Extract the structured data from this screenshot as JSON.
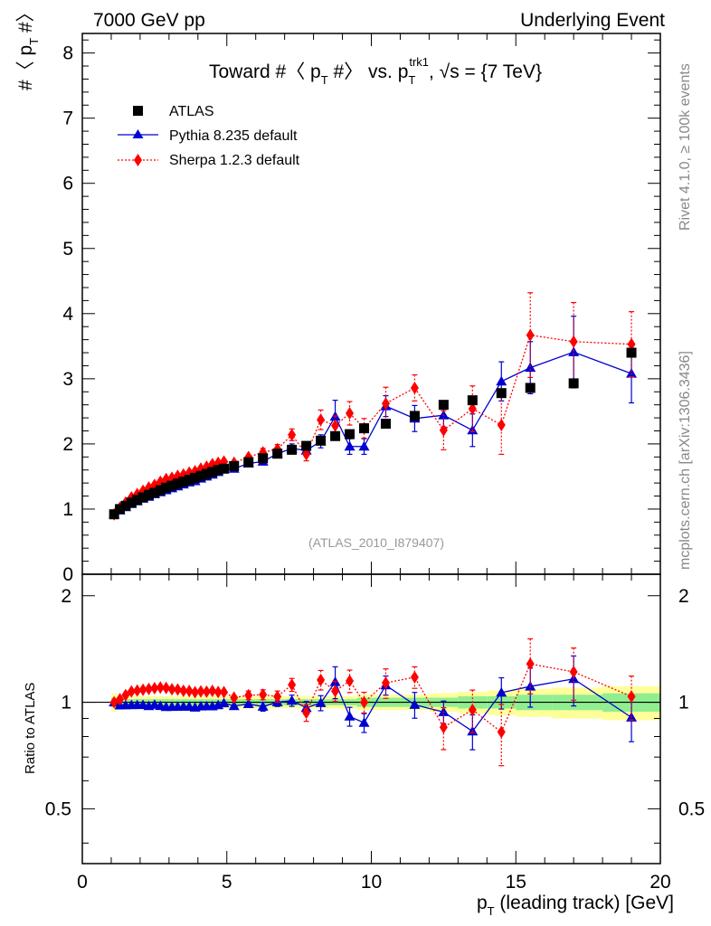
{
  "header": {
    "left": "7000 GeV pp",
    "right": "Underlying Event"
  },
  "side_labels": {
    "rivet": "Rivet 4.1.0, ≥ 100k events",
    "mcplots": "mcplots.cern.ch [arXiv:1306.3436]"
  },
  "colors": {
    "atlas": "#000000",
    "pythia": "#0000d0",
    "sherpa": "#ff0000",
    "band_inner": "#90ee90",
    "band_outer": "#ffff99"
  },
  "chart_data": {
    "type": "scatter",
    "title_parts": {
      "main": "Toward #〈 p",
      "sub1": "T",
      "mid": " #〉 vs. p",
      "sup": "trk1",
      "sub2": "T",
      "tail": ", √s = {7 TeV}"
    },
    "watermark": "(ATLAS_2010_I879407)",
    "ylabel_main": {
      "a": "#〈 p",
      "sub": "T",
      "b": " #〉"
    },
    "ylabel_ratio": "Ratio to ATLAS",
    "xlabel": {
      "p": "p",
      "sub": "T",
      "rest": " (leading track) [GeV]"
    },
    "xlim": [
      0,
      20
    ],
    "ylim_main": [
      0,
      8.3
    ],
    "ylim_ratio": [
      0.35,
      2.3
    ],
    "xticks": [
      0,
      5,
      10,
      15,
      20
    ],
    "xtick_labels": [
      "0",
      "5",
      "10",
      "15",
      "20"
    ],
    "yticks_main": [
      0,
      1,
      2,
      3,
      4,
      5,
      6,
      7,
      8
    ],
    "ytick_labels_main": [
      "0",
      "1",
      "2",
      "3",
      "4",
      "5",
      "6",
      "7",
      "8"
    ],
    "yticks_ratio": [
      0.5,
      1,
      2
    ],
    "ytick_labels_ratio": [
      "0.5",
      "1",
      "2"
    ],
    "legend": [
      "ATLAS",
      "Pythia 8.235 default",
      "Sherpa 1.2.3 default"
    ],
    "x": [
      1.1,
      1.3,
      1.5,
      1.7,
      1.9,
      2.1,
      2.3,
      2.5,
      2.7,
      2.9,
      3.1,
      3.3,
      3.5,
      3.7,
      3.9,
      4.1,
      4.3,
      4.5,
      4.7,
      4.9,
      5.25,
      5.75,
      6.25,
      6.75,
      7.25,
      7.75,
      8.25,
      8.75,
      9.25,
      9.75,
      10.5,
      11.5,
      12.5,
      13.5,
      14.5,
      15.5,
      17.0,
      19.0
    ],
    "series": [
      {
        "name": "ATLAS",
        "values": [
          0.92,
          1.0,
          1.05,
          1.1,
          1.14,
          1.18,
          1.22,
          1.25,
          1.29,
          1.33,
          1.36,
          1.39,
          1.42,
          1.45,
          1.48,
          1.51,
          1.54,
          1.57,
          1.6,
          1.62,
          1.66,
          1.72,
          1.78,
          1.85,
          1.91,
          1.97,
          2.05,
          2.12,
          2.15,
          2.24,
          2.31,
          2.43,
          2.6,
          2.67,
          2.78,
          2.86,
          2.93,
          3.4
        ],
        "band_inner_halfwidth": [
          0.03,
          0.02,
          0.02,
          0.02,
          0.02,
          0.02,
          0.02,
          0.02,
          0.02,
          0.02,
          0.02,
          0.02,
          0.02,
          0.02,
          0.02,
          0.02,
          0.02,
          0.02,
          0.02,
          0.02,
          0.02,
          0.02,
          0.02,
          0.02,
          0.02,
          0.02,
          0.02,
          0.02,
          0.02,
          0.03,
          0.03,
          0.03,
          0.03,
          0.04,
          0.04,
          0.05,
          0.05,
          0.06
        ],
        "band_outer_halfwidth": [
          0.06,
          0.04,
          0.04,
          0.04,
          0.04,
          0.04,
          0.04,
          0.04,
          0.04,
          0.04,
          0.04,
          0.04,
          0.04,
          0.04,
          0.04,
          0.04,
          0.04,
          0.04,
          0.04,
          0.04,
          0.04,
          0.04,
          0.04,
          0.04,
          0.04,
          0.04,
          0.04,
          0.04,
          0.04,
          0.05,
          0.05,
          0.05,
          0.06,
          0.07,
          0.08,
          0.09,
          0.1,
          0.11
        ]
      },
      {
        "name": "Pythia 8.235 default",
        "values": [
          0.92,
          0.98,
          1.03,
          1.08,
          1.12,
          1.16,
          1.19,
          1.23,
          1.26,
          1.29,
          1.32,
          1.35,
          1.38,
          1.41,
          1.43,
          1.47,
          1.5,
          1.53,
          1.57,
          1.61,
          1.62,
          1.7,
          1.73,
          1.85,
          1.93,
          1.9,
          2.04,
          2.42,
          1.96,
          1.96,
          2.58,
          2.39,
          2.44,
          2.21,
          2.96,
          3.17,
          3.41,
          3.08
        ],
        "errors": [
          0.01,
          0.01,
          0.01,
          0.01,
          0.01,
          0.01,
          0.01,
          0.01,
          0.01,
          0.01,
          0.01,
          0.01,
          0.01,
          0.01,
          0.01,
          0.01,
          0.01,
          0.01,
          0.02,
          0.02,
          0.03,
          0.04,
          0.05,
          0.05,
          0.07,
          0.08,
          0.1,
          0.25,
          0.12,
          0.12,
          0.16,
          0.2,
          0.18,
          0.25,
          0.3,
          0.4,
          0.55,
          0.45
        ]
      },
      {
        "name": "Sherpa 1.2.3 default",
        "values": [
          0.92,
          1.02,
          1.1,
          1.18,
          1.23,
          1.28,
          1.33,
          1.37,
          1.42,
          1.46,
          1.48,
          1.51,
          1.53,
          1.56,
          1.58,
          1.62,
          1.65,
          1.69,
          1.71,
          1.73,
          1.71,
          1.8,
          1.87,
          1.92,
          2.14,
          1.84,
          2.37,
          2.28,
          2.47,
          2.24,
          2.62,
          2.86,
          2.21,
          2.54,
          2.29,
          3.67,
          3.57,
          3.53
        ],
        "errors": [
          0.01,
          0.01,
          0.01,
          0.01,
          0.01,
          0.01,
          0.01,
          0.01,
          0.01,
          0.01,
          0.01,
          0.01,
          0.02,
          0.02,
          0.02,
          0.02,
          0.02,
          0.02,
          0.02,
          0.03,
          0.04,
          0.05,
          0.06,
          0.07,
          0.09,
          0.1,
          0.15,
          0.15,
          0.18,
          0.15,
          0.25,
          0.2,
          0.3,
          0.35,
          0.45,
          0.65,
          0.6,
          0.5
        ]
      }
    ]
  }
}
